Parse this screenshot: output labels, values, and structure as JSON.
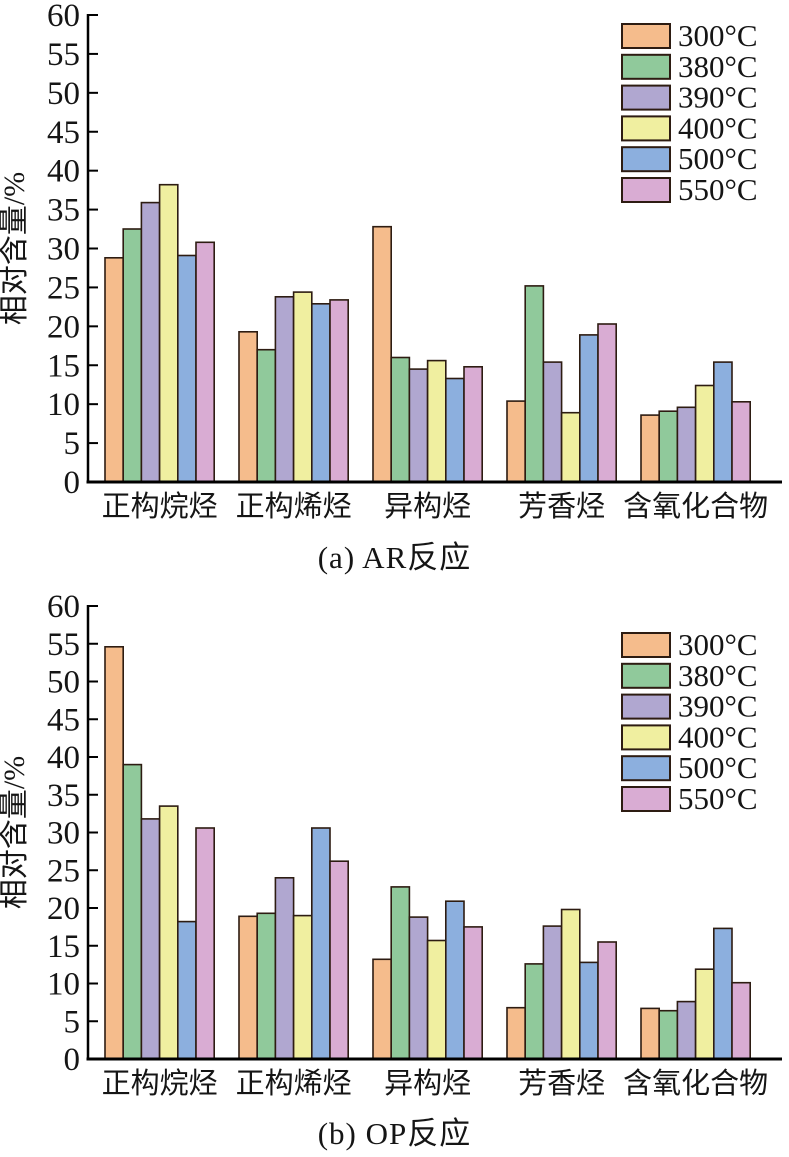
{
  "page": {
    "background": "#ffffff"
  },
  "chart_data": [
    {
      "id": "chart-a",
      "type": "bar",
      "title": "(a)  AR反应",
      "ylabel": "相对含量/%",
      "ylim": [
        0,
        60
      ],
      "ytick_step": 5,
      "grid": false,
      "legend_position": "top-right",
      "bar_outline": "#2d1c12",
      "categories": [
        "正构烷烃",
        "正构烯烃",
        "异构烃",
        "芳香烃",
        "含氧化合物"
      ],
      "series": [
        {
          "name": "300°C",
          "color": "#f5bc8c",
          "values": [
            28.8,
            19.3,
            32.8,
            10.4,
            8.6
          ]
        },
        {
          "name": "380°C",
          "color": "#90c99b",
          "values": [
            32.5,
            17.0,
            16.0,
            25.2,
            9.1
          ]
        },
        {
          "name": "390°C",
          "color": "#b0a7d0",
          "values": [
            35.9,
            23.8,
            14.5,
            15.4,
            9.6
          ]
        },
        {
          "name": "400°C",
          "color": "#f0efa0",
          "values": [
            38.2,
            24.4,
            15.6,
            8.9,
            12.4
          ]
        },
        {
          "name": "500°C",
          "color": "#8cafde",
          "values": [
            29.1,
            22.9,
            13.3,
            18.9,
            15.4
          ]
        },
        {
          "name": "550°C",
          "color": "#d9acd3",
          "values": [
            30.8,
            23.4,
            14.8,
            20.3,
            10.3
          ]
        }
      ]
    },
    {
      "id": "chart-b",
      "type": "bar",
      "title": "(b)  OP反应",
      "ylabel": "相对含量/%",
      "ylim": [
        0,
        60
      ],
      "ytick_step": 5,
      "grid": false,
      "legend_position": "top-right",
      "bar_outline": "#2d1c12",
      "categories": [
        "正构烷烃",
        "正构烯烃",
        "异构烃",
        "芳香烃",
        "含氧化合物"
      ],
      "series": [
        {
          "name": "300°C",
          "color": "#f5bc8c",
          "values": [
            54.6,
            18.9,
            13.2,
            6.8,
            6.7
          ]
        },
        {
          "name": "380°C",
          "color": "#90c99b",
          "values": [
            39.0,
            19.3,
            22.8,
            12.6,
            6.4
          ]
        },
        {
          "name": "390°C",
          "color": "#b0a7d0",
          "values": [
            31.8,
            24.0,
            18.8,
            17.6,
            7.6
          ]
        },
        {
          "name": "400°C",
          "color": "#f0efa0",
          "values": [
            33.5,
            19.0,
            15.7,
            19.8,
            11.9
          ]
        },
        {
          "name": "500°C",
          "color": "#8cafde",
          "values": [
            18.2,
            30.6,
            20.9,
            12.8,
            17.3
          ]
        },
        {
          "name": "550°C",
          "color": "#d9acd3",
          "values": [
            30.6,
            26.2,
            17.5,
            15.5,
            10.1
          ]
        }
      ]
    }
  ]
}
